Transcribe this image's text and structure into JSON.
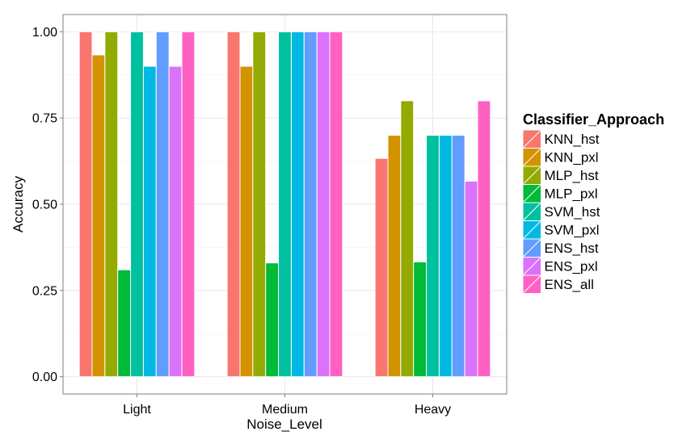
{
  "chart_data": {
    "type": "bar",
    "categories": [
      "Light",
      "Medium",
      "Heavy"
    ],
    "xlabel": "Noise_Level",
    "ylabel": "Accuracy",
    "ylim": [
      -0.05,
      1.05
    ],
    "yticks": [
      "0.00",
      "0.25",
      "0.50",
      "0.75",
      "1.00"
    ],
    "ytick_values": [
      0,
      0.25,
      0.5,
      0.75,
      1.0
    ],
    "grid": true,
    "legend_title": "Classifier_Approach",
    "legend_position": "right",
    "series": [
      {
        "name": "KNN_hst",
        "color": "#F8766D",
        "values": [
          1.0,
          1.0,
          0.633
        ]
      },
      {
        "name": "KNN_pxl",
        "color": "#D39200",
        "values": [
          0.933,
          0.9,
          0.7
        ]
      },
      {
        "name": "MLP_hst",
        "color": "#93AA00",
        "values": [
          1.0,
          1.0,
          0.8
        ]
      },
      {
        "name": "MLP_pxl",
        "color": "#00BA38",
        "values": [
          0.31,
          0.33,
          0.333
        ]
      },
      {
        "name": "SVM_hst",
        "color": "#00C19F",
        "values": [
          1.0,
          1.0,
          0.7
        ]
      },
      {
        "name": "SVM_pxl",
        "color": "#00B9E3",
        "values": [
          0.9,
          1.0,
          0.7
        ]
      },
      {
        "name": "ENS_hst",
        "color": "#619CFF",
        "values": [
          1.0,
          1.0,
          0.7
        ]
      },
      {
        "name": "ENS_pxl",
        "color": "#DB72FB",
        "values": [
          0.9,
          1.0,
          0.567
        ]
      },
      {
        "name": "ENS_all",
        "color": "#FF61C3",
        "values": [
          1.0,
          1.0,
          0.8
        ]
      }
    ]
  }
}
